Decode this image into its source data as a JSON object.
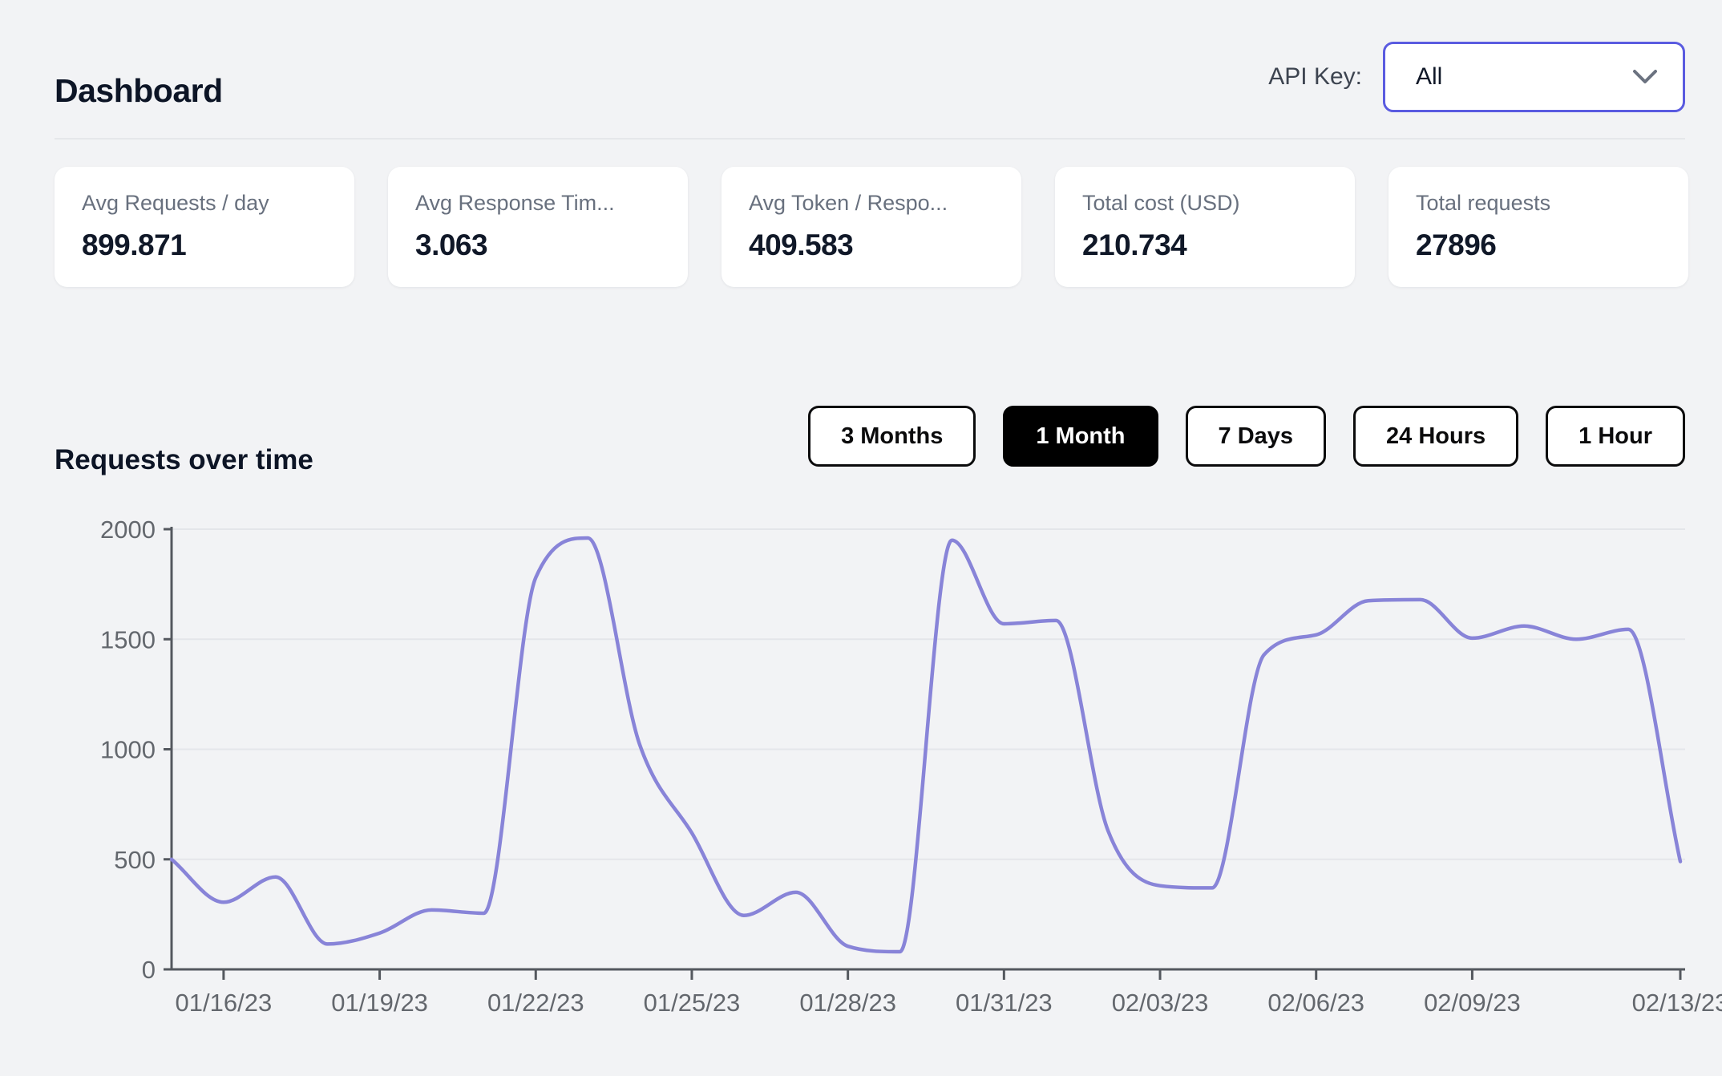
{
  "page": {
    "title": "Dashboard"
  },
  "api_key": {
    "label": "API Key:",
    "selected": "All"
  },
  "stats": [
    {
      "label": "Avg Requests / day",
      "value": "899.871"
    },
    {
      "label": "Avg Response Tim...",
      "value": "3.063"
    },
    {
      "label": "Avg Token / Respo...",
      "value": "409.583"
    },
    {
      "label": "Total cost (USD)",
      "value": "210.734"
    },
    {
      "label": "Total requests",
      "value": "27896"
    }
  ],
  "section": {
    "title": "Requests over time"
  },
  "range_buttons": [
    {
      "label": "3 Months",
      "active": false
    },
    {
      "label": "1 Month",
      "active": true
    },
    {
      "label": "7 Days",
      "active": false
    },
    {
      "label": "24 Hours",
      "active": false
    },
    {
      "label": "1 Hour",
      "active": false
    }
  ],
  "chart_data": {
    "type": "line",
    "title": "Requests over time",
    "xlabel": "",
    "ylabel": "",
    "ylim": [
      0,
      2000
    ],
    "y_ticks": [
      0,
      500,
      1000,
      1500,
      2000
    ],
    "grid": true,
    "legend": "none",
    "x": [
      "01/15/23",
      "01/16/23",
      "01/17/23",
      "01/18/23",
      "01/19/23",
      "01/20/23",
      "01/21/23",
      "01/22/23",
      "01/23/23",
      "01/24/23",
      "01/25/23",
      "01/26/23",
      "01/27/23",
      "01/28/23",
      "01/29/23",
      "01/30/23",
      "01/31/23",
      "02/01/23",
      "02/02/23",
      "02/03/23",
      "02/04/23",
      "02/05/23",
      "02/06/23",
      "02/07/23",
      "02/08/23",
      "02/09/23",
      "02/10/23",
      "02/11/23",
      "02/12/23",
      "02/13/23"
    ],
    "x_tick_labels": [
      "01/16/23",
      "01/19/23",
      "01/22/23",
      "01/25/23",
      "01/28/23",
      "01/31/23",
      "02/03/23",
      "02/06/23",
      "02/09/23",
      "02/13/23"
    ],
    "series": [
      {
        "name": "requests",
        "values": [
          500,
          305,
          420,
          115,
          165,
          270,
          255,
          1780,
          1960,
          1020,
          620,
          245,
          350,
          105,
          80,
          1950,
          1570,
          1585,
          630,
          380,
          370,
          1430,
          1520,
          1675,
          1680,
          1505,
          1560,
          1500,
          1545,
          490
        ]
      }
    ]
  },
  "colors": {
    "accent": "#5a5be0",
    "line": "#8884d8",
    "button_active_bg": "#000000",
    "axis": "#54585e",
    "grid": "#e4e6ea",
    "background": "#f2f3f5"
  }
}
